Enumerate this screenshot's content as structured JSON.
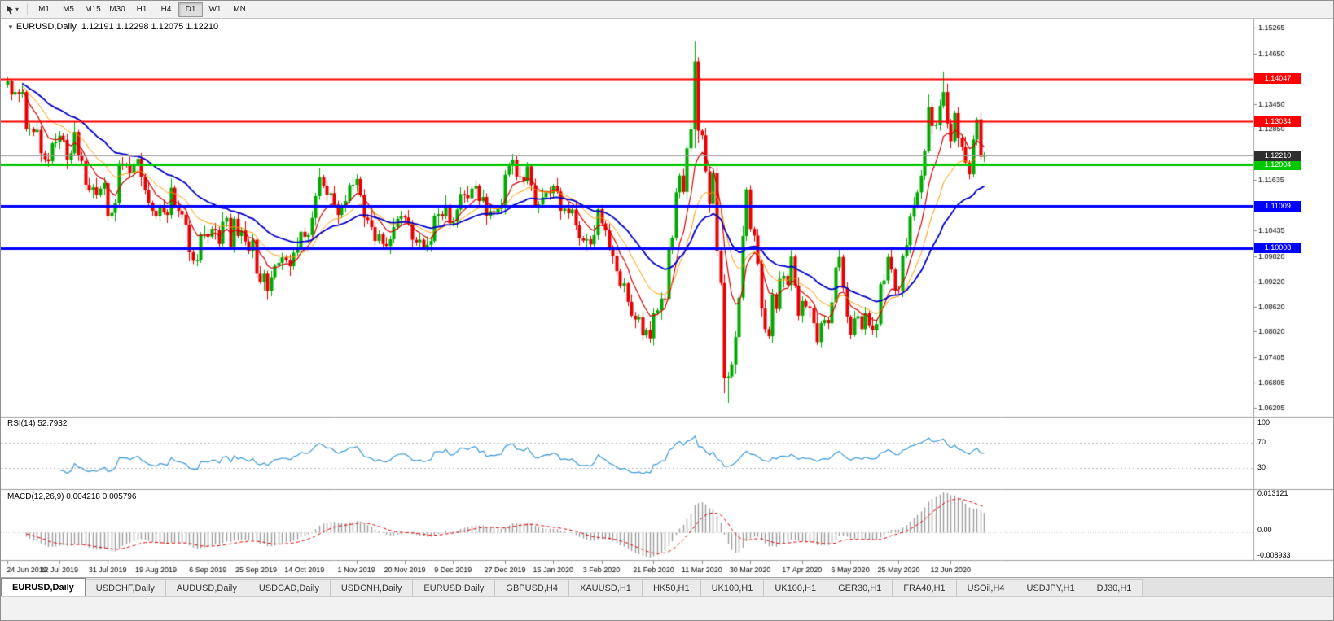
{
  "toolbar": {
    "dropdown_glyph": "▾",
    "timeframes": [
      "M1",
      "M5",
      "M15",
      "M30",
      "H1",
      "H4",
      "D1",
      "W1",
      "MN"
    ],
    "selected_timeframe": "D1"
  },
  "chart_header": {
    "glyph": "▼",
    "title": "EURUSD,Daily",
    "ohlc": "1.12191 1.12298 1.12075 1.12210"
  },
  "rsi_panel": {
    "label": "RSI(14) 52.7932",
    "axis": [
      "100",
      "70",
      "30"
    ]
  },
  "macd_panel": {
    "label": "MACD(12,26,9) 0.004218 0.005796",
    "axis": [
      "0.013121",
      "0.00",
      "-0.008933"
    ]
  },
  "tabs": {
    "active_index": 0,
    "items": [
      "EURUSD,Daily",
      "USDCHF,Daily",
      "AUDUSD,Daily",
      "USDCAD,Daily",
      "USDCNH,Daily",
      "EURUSD,Daily",
      "GBPUSD,H4",
      "XAUUSD,H1",
      "HK50,H1",
      "UK100,H1",
      "UK100,H1",
      "GER30,H1",
      "FRA40,H1",
      "USOil,H4",
      "USDJPY,H1",
      "DJ30,H1"
    ]
  },
  "chart_data": {
    "type": "candlestick",
    "symbol": "EURUSD",
    "period": "Daily",
    "current_bar": {
      "open": 1.12191,
      "high": 1.12298,
      "low": 1.12075,
      "close": 1.1221
    },
    "price_scale": {
      "top": 1.1544,
      "bottom": 1.0605
    },
    "y_axis_labels": [
      "1.15265",
      "1.14650",
      "1.14050",
      "1.13450",
      "1.12850",
      "1.12250",
      "1.11635",
      "1.11035",
      "1.10435",
      "1.09820",
      "1.09220",
      "1.08620",
      "1.08020",
      "1.07405",
      "1.06805",
      "1.06205"
    ],
    "x_axis": [
      {
        "i": 0,
        "label": "24 Jun 2019"
      },
      {
        "i": 14,
        "label": "12 Jul 2019"
      },
      {
        "i": 27,
        "label": "31 Jul 2019"
      },
      {
        "i": 40,
        "label": "19 Aug 2019"
      },
      {
        "i": 54,
        "label": "6 Sep 2019"
      },
      {
        "i": 67,
        "label": "25 Sep 2019"
      },
      {
        "i": 80,
        "label": "14 Oct 2019"
      },
      {
        "i": 94,
        "label": "1 Nov 2019"
      },
      {
        "i": 107,
        "label": "20 Nov 2019"
      },
      {
        "i": 120,
        "label": "9 Dec 2019"
      },
      {
        "i": 134,
        "label": "27 Dec 2019"
      },
      {
        "i": 147,
        "label": "15 Jan 2020"
      },
      {
        "i": 160,
        "label": "3 Feb 2020"
      },
      {
        "i": 174,
        "label": "21 Feb 2020"
      },
      {
        "i": 187,
        "label": "11 Mar 2020"
      },
      {
        "i": 200,
        "label": "30 Mar 2020"
      },
      {
        "i": 214,
        "label": "17 Apr 2020"
      },
      {
        "i": 227,
        "label": "6 May 2020"
      },
      {
        "i": 240,
        "label": "25 May 2020"
      },
      {
        "i": 254,
        "label": "12 Jun 2020"
      }
    ],
    "first_open": 1.139,
    "closes": [
      1.1399,
      1.1367,
      1.1373,
      1.1368,
      1.1373,
      1.1285,
      1.1286,
      1.1278,
      1.1283,
      1.1227,
      1.1213,
      1.1208,
      1.1251,
      1.1254,
      1.1269,
      1.1259,
      1.1212,
      1.1227,
      1.1278,
      1.1221,
      1.1209,
      1.1152,
      1.1139,
      1.1146,
      1.1128,
      1.1143,
      1.1156,
      1.1077,
      1.1085,
      1.1108,
      1.1203,
      1.12,
      1.1199,
      1.118,
      1.12,
      1.1214,
      1.1171,
      1.1139,
      1.1109,
      1.109,
      1.1077,
      1.11,
      1.1086,
      1.108,
      1.1145,
      1.1101,
      1.109,
      1.1081,
      1.1057,
      1.0991,
      1.0971,
      1.0972,
      1.1034,
      1.1035,
      1.1028,
      1.1047,
      1.1044,
      1.1011,
      1.1064,
      1.1073,
      1.1004,
      1.1071,
      1.103,
      1.1043,
      1.1017,
      1.0993,
      1.1021,
      1.094,
      1.0921,
      1.094,
      1.0899,
      1.0932,
      1.0959,
      1.0966,
      1.0979,
      1.0972,
      1.0958,
      1.099,
      1.1003,
      1.104,
      1.1028,
      1.1032,
      1.1073,
      1.1125,
      1.117,
      1.115,
      1.1128,
      1.1132,
      1.1105,
      1.108,
      1.11,
      1.1113,
      1.1151,
      1.1152,
      1.1166,
      1.1128,
      1.1074,
      1.1068,
      1.1051,
      1.1018,
      1.1034,
      1.1011,
      1.1006,
      1.1022,
      1.1051,
      1.1071,
      1.1077,
      1.1074,
      1.1059,
      1.1021,
      1.1015,
      1.1021,
      1.1003,
      1.1009,
      1.1018,
      1.1078,
      1.1082,
      1.1077,
      1.1104,
      1.106,
      1.1064,
      1.1093,
      1.113,
      1.1127,
      1.112,
      1.1143,
      1.115,
      1.1113,
      1.1123,
      1.1078,
      1.1089,
      1.1086,
      1.1094,
      1.1098,
      1.1176,
      1.1199,
      1.1212,
      1.1172,
      1.1171,
      1.116,
      1.1196,
      1.1151,
      1.1103,
      1.1105,
      1.1122,
      1.1134,
      1.1132,
      1.115,
      1.1136,
      1.109,
      1.1095,
      1.1084,
      1.1093,
      1.1055,
      1.1024,
      1.1019,
      1.1022,
      1.101,
      1.1032,
      1.1094,
      1.106,
      1.1043,
      1.1,
      1.0983,
      1.0946,
      1.0911,
      1.0917,
      1.0873,
      1.084,
      1.0831,
      1.0836,
      1.0793,
      1.0806,
      1.0786,
      1.0846,
      1.0853,
      1.0881,
      1.088,
      1.0999,
      1.1026,
      1.1134,
      1.1174,
      1.1135,
      1.1239,
      1.1284,
      1.1446,
      1.1281,
      1.127,
      1.1184,
      1.1106,
      1.118,
      1.0995,
      1.0918,
      1.0691,
      1.0695,
      1.0724,
      1.0789,
      1.0883,
      1.103,
      1.1141,
      1.1047,
      1.1031,
      1.0964,
      1.0857,
      1.0808,
      1.0791,
      1.0891,
      1.0856,
      1.0928,
      1.0935,
      1.0913,
      1.0981,
      1.0912,
      1.084,
      1.0875,
      1.0862,
      1.0858,
      1.0822,
      1.0777,
      1.0822,
      1.083,
      1.0822,
      1.0872,
      1.0955,
      1.098,
      1.0906,
      1.0838,
      1.0795,
      1.0833,
      1.0839,
      1.0808,
      1.0846,
      1.0817,
      1.0805,
      1.082,
      1.0915,
      1.0924,
      1.098,
      1.095,
      1.09,
      1.0898,
      1.0983,
      1.1008,
      1.1076,
      1.1101,
      1.1134,
      1.1174,
      1.1233,
      1.1337,
      1.1292,
      1.1294,
      1.134,
      1.1373,
      1.1298,
      1.1256,
      1.1323,
      1.1264,
      1.1243,
      1.1205,
      1.1177,
      1.126,
      1.1308,
      1.1219,
      1.1221
    ],
    "wick_unit": 0.0001,
    "upper_wick_pattern": [
      10,
      5,
      16,
      8,
      22,
      6,
      13,
      4,
      18,
      9,
      7,
      15,
      5,
      20,
      11,
      6,
      14,
      8,
      24,
      5
    ],
    "lower_wick_pattern": [
      7,
      14,
      5,
      19,
      9,
      6,
      16,
      10,
      5,
      21,
      8,
      13,
      6,
      11,
      17,
      5,
      23,
      9,
      7,
      12
    ],
    "wick_overrides": [
      {
        "i": 70,
        "lw": 20
      },
      {
        "i": 173,
        "lw": 10
      },
      {
        "i": 185,
        "uw": 49,
        "lw": 45
      },
      {
        "i": 186,
        "uw": 10,
        "lw": 30
      },
      {
        "i": 193,
        "lw": 36
      },
      {
        "i": 194,
        "lw": 59
      },
      {
        "i": 248,
        "uw": 30
      },
      {
        "i": 252,
        "uw": 49
      },
      {
        "i": 262,
        "uw": 15,
        "lw": 10
      },
      {
        "i": 263,
        "uw": 9,
        "lw": 13
      }
    ],
    "candle_up_color": "#00a800",
    "candle_down_color": "#e60000",
    "hlines": [
      {
        "price": 1.14047,
        "label": "1.14047",
        "color": "#ff0000",
        "width": 2
      },
      {
        "price": 1.13034,
        "label": "1.13034",
        "color": "#ff0000",
        "width": 2
      },
      {
        "price": 1.12004,
        "label": "1.12004",
        "color": "#00c800",
        "width": 3
      },
      {
        "price": 1.11009,
        "label": "1.11009",
        "color": "#0000ff",
        "width": 3
      },
      {
        "price": 1.10008,
        "label": "1.10008",
        "color": "#0000ff",
        "width": 3
      }
    ],
    "current_price_line": {
      "price": 1.1221,
      "label": "1.12210",
      "line_color": "#9a9a9a",
      "label_bg": "#2e2e2e"
    },
    "moving_averages": [
      {
        "type": "ema",
        "period": 8,
        "color": "#d40000",
        "width": 1.2
      },
      {
        "type": "ema",
        "period": 17,
        "color": "#ff9900",
        "width": 1
      },
      {
        "type": "ema",
        "period": 34,
        "color": "#0000c8",
        "width": 1.8
      }
    ],
    "rsi": {
      "period": 14,
      "levels": [
        70,
        30
      ],
      "color": "#3a99d9"
    },
    "macd": {
      "fast": 12,
      "slow": 26,
      "signal": 9,
      "hist_color": "#9c9c9c",
      "signal_color": "#e60000"
    }
  }
}
